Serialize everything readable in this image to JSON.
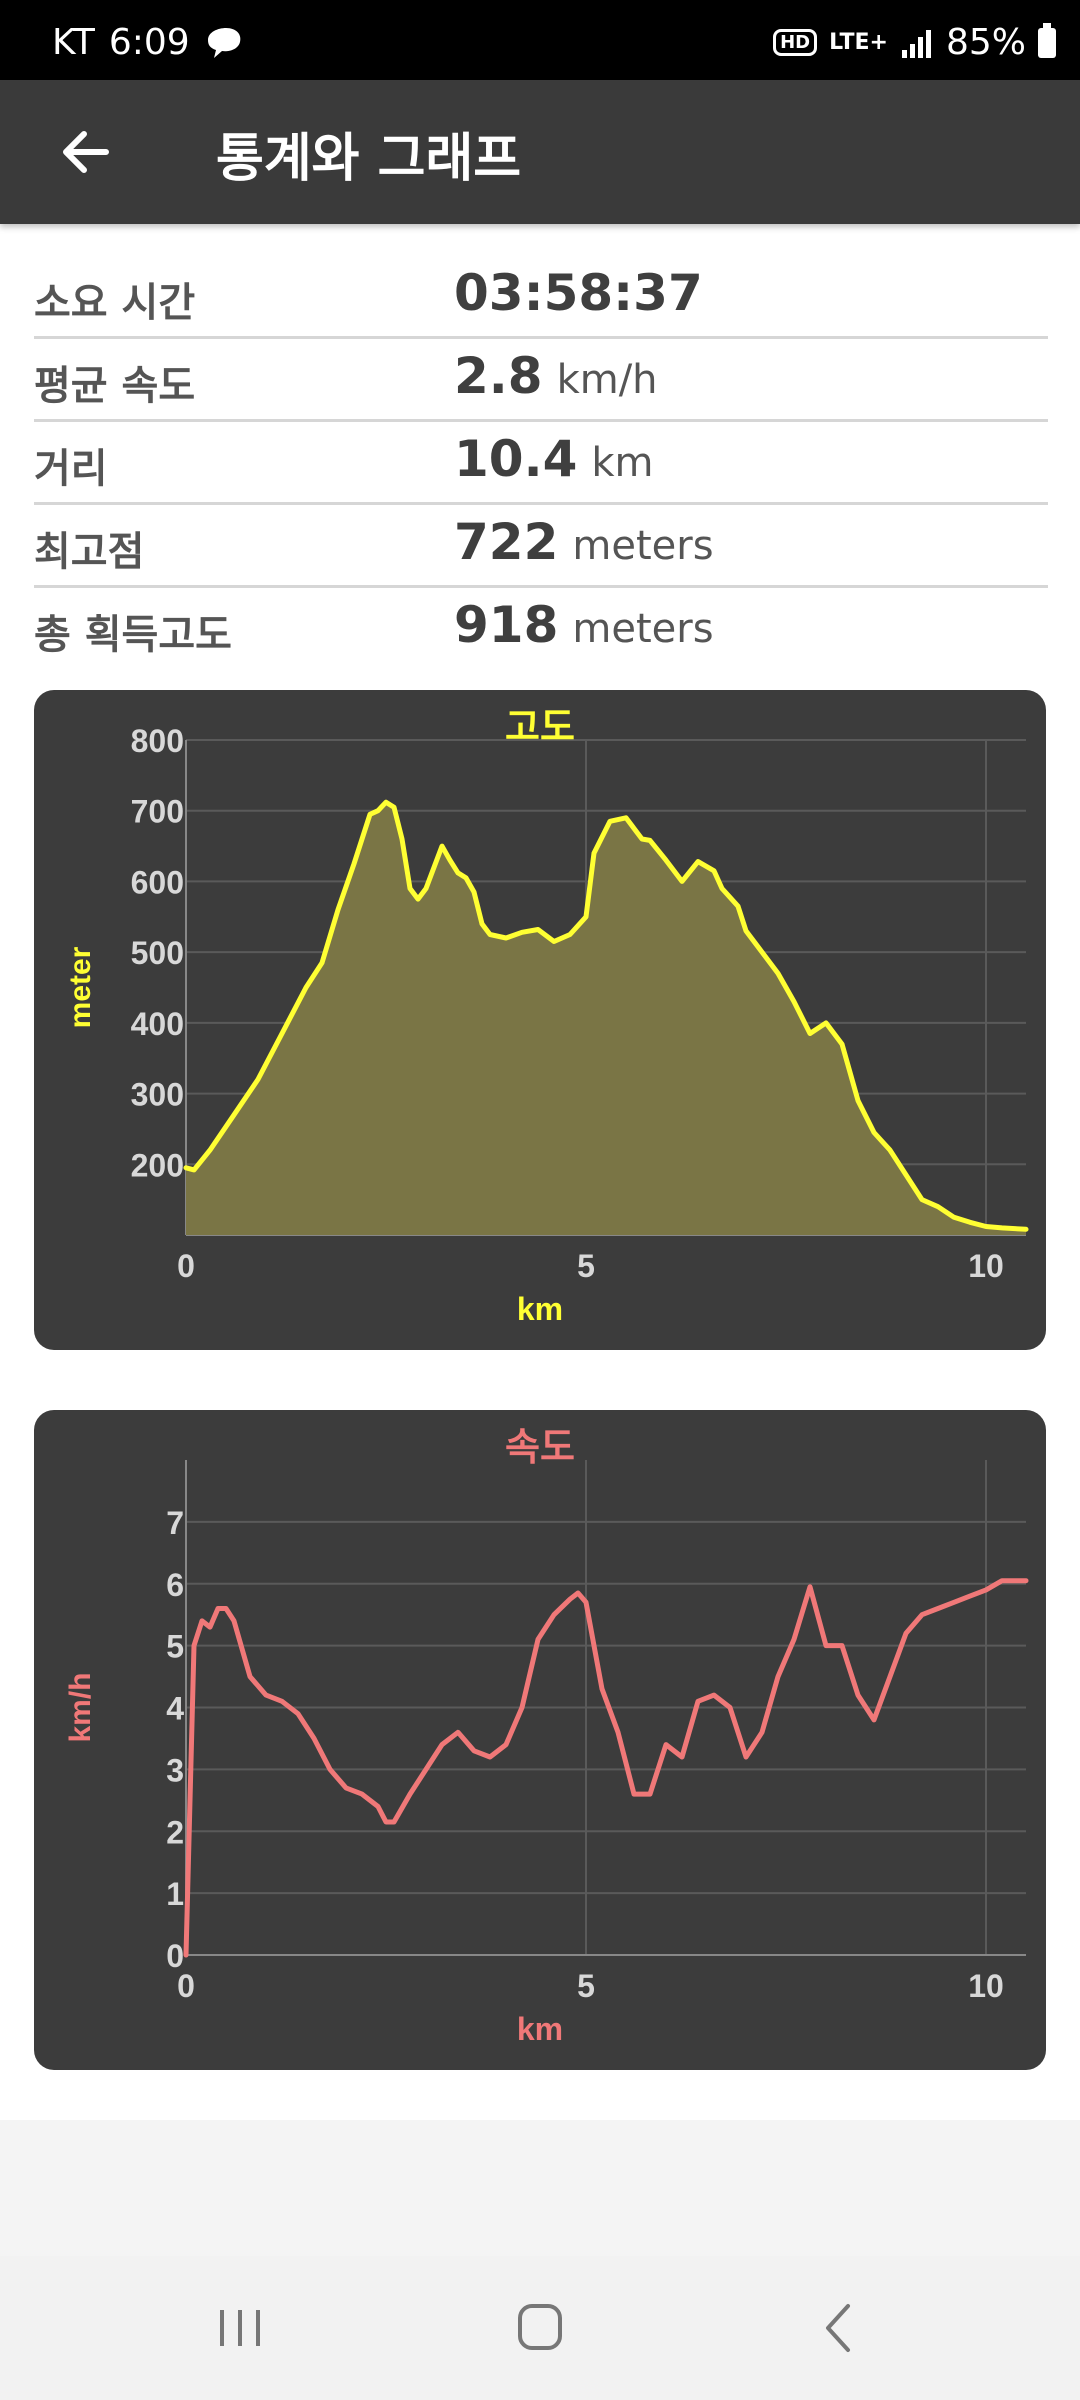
{
  "status_bar": {
    "carrier": "KT",
    "time": "6:09",
    "hd": "HD",
    "network": "LTE+",
    "battery": "85%"
  },
  "app_bar": {
    "back_icon": "arrow-left-icon",
    "title": "통계와 그래프"
  },
  "stats": [
    {
      "label": "소요 시간",
      "value": "03:58:37",
      "unit": ""
    },
    {
      "label": "평균 속도",
      "value": "2.8",
      "unit": "km/h"
    },
    {
      "label": "거리",
      "value": "10.4",
      "unit": "km"
    },
    {
      "label": "최고점",
      "value": "722",
      "unit": "meters"
    },
    {
      "label": "총 획득고도",
      "value": "918",
      "unit": "meters"
    }
  ],
  "colors": {
    "elevation": "#ffff33",
    "elevation_fill": "#7a7545",
    "speed": "#f07878",
    "card_bg": "#3c3c3c",
    "tick": "#d8d8d8",
    "grid": "#5a5a5a"
  },
  "chart_data": [
    {
      "type": "area",
      "title": "고도",
      "xlabel": "km",
      "ylabel": "meter",
      "xlim": [
        0,
        10.5
      ],
      "ylim": [
        100,
        800
      ],
      "x_ticks": [
        0,
        5,
        10
      ],
      "y_ticks": [
        200,
        300,
        400,
        500,
        600,
        700,
        800
      ],
      "grid": true,
      "series": [
        {
          "x": [
            0,
            0.1,
            0.3,
            0.6,
            0.9,
            1.2,
            1.5,
            1.7,
            1.9,
            2.1,
            2.3,
            2.4,
            2.5,
            2.6,
            2.7,
            2.8,
            2.9,
            3.0,
            3.2,
            3.3,
            3.4,
            3.5,
            3.6,
            3.7,
            3.8,
            4.0,
            4.2,
            4.4,
            4.6,
            4.8,
            5.0,
            5.1,
            5.3,
            5.5,
            5.7,
            5.8,
            6.0,
            6.2,
            6.4,
            6.6,
            6.7,
            6.9,
            7.0,
            7.2,
            7.4,
            7.6,
            7.8,
            8.0,
            8.2,
            8.4,
            8.6,
            8.8,
            9.0,
            9.2,
            9.4,
            9.6,
            9.8,
            10.0,
            10.2,
            10.5
          ],
          "y": [
            195,
            192,
            220,
            270,
            320,
            385,
            450,
            485,
            560,
            625,
            695,
            700,
            712,
            705,
            660,
            590,
            575,
            590,
            650,
            630,
            612,
            605,
            585,
            540,
            525,
            520,
            528,
            532,
            515,
            525,
            550,
            640,
            685,
            690,
            660,
            658,
            630,
            600,
            628,
            615,
            590,
            565,
            530,
            500,
            470,
            430,
            385,
            400,
            370,
            290,
            245,
            220,
            185,
            150,
            140,
            125,
            118,
            112,
            110,
            108
          ]
        }
      ]
    },
    {
      "type": "line",
      "title": "속도",
      "xlabel": "km",
      "ylabel": "km/h",
      "xlim": [
        0,
        10.5
      ],
      "ylim": [
        0,
        8
      ],
      "x_ticks": [
        0,
        5,
        10
      ],
      "y_ticks": [
        0,
        1,
        2,
        3,
        4,
        5,
        6,
        7
      ],
      "grid": true,
      "series": [
        {
          "x": [
            0,
            0.05,
            0.1,
            0.2,
            0.3,
            0.4,
            0.5,
            0.6,
            0.8,
            1.0,
            1.2,
            1.4,
            1.6,
            1.8,
            2.0,
            2.2,
            2.4,
            2.5,
            2.6,
            2.8,
            3.0,
            3.2,
            3.4,
            3.6,
            3.8,
            4.0,
            4.2,
            4.4,
            4.6,
            4.8,
            4.9,
            5.0,
            5.2,
            5.4,
            5.6,
            5.8,
            6.0,
            6.2,
            6.4,
            6.6,
            6.8,
            7.0,
            7.2,
            7.4,
            7.6,
            7.8,
            8.0,
            8.2,
            8.4,
            8.6,
            8.8,
            9.0,
            9.2,
            9.4,
            9.6,
            9.8,
            10.0,
            10.2,
            10.5
          ],
          "y": [
            0,
            2.5,
            5.0,
            5.4,
            5.3,
            5.6,
            5.6,
            5.4,
            4.5,
            4.2,
            4.1,
            3.9,
            3.5,
            3.0,
            2.7,
            2.6,
            2.4,
            2.15,
            2.15,
            2.6,
            3.0,
            3.4,
            3.6,
            3.3,
            3.2,
            3.4,
            4.0,
            5.1,
            5.5,
            5.75,
            5.85,
            5.7,
            4.3,
            3.6,
            2.6,
            2.6,
            3.4,
            3.2,
            4.1,
            4.2,
            4.0,
            3.2,
            3.6,
            4.5,
            5.1,
            5.95,
            5.0,
            5.0,
            4.2,
            3.8,
            4.5,
            5.2,
            5.5,
            5.6,
            5.7,
            5.8,
            5.9,
            6.05,
            6.05
          ]
        }
      ]
    }
  ],
  "nav_bar": {
    "recents_icon": "recents-icon",
    "home_icon": "home-icon",
    "back_icon": "back-chevron-icon"
  }
}
